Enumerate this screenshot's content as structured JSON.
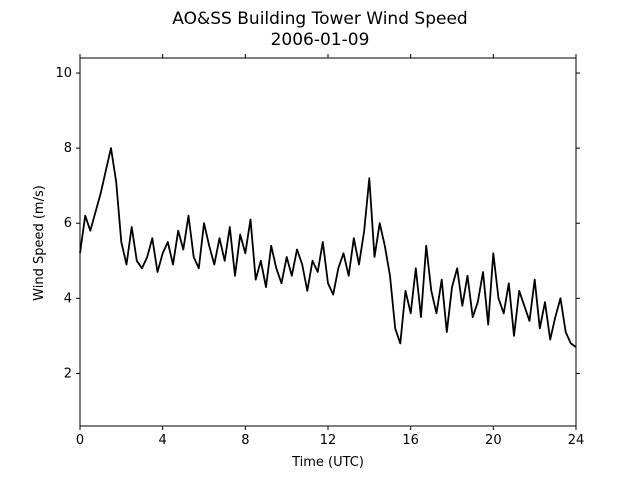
{
  "chart_data": {
    "type": "line",
    "title": "AO&SS Building Tower Wind Speed",
    "subtitle": "2006-01-09",
    "xlabel": "Time (UTC)",
    "ylabel": "Wind Speed (m/s)",
    "xlim": [
      0,
      24
    ],
    "ylim": [
      0.6,
      10.4
    ],
    "xticks": [
      0,
      4,
      8,
      12,
      16,
      20,
      24
    ],
    "yticks": [
      2,
      4,
      6,
      8,
      10
    ],
    "grid": false,
    "line_color": "#000000",
    "series": [
      {
        "x": [
          0.0,
          0.25,
          0.5,
          0.75,
          1.0,
          1.25,
          1.5,
          1.75,
          2.0,
          2.25,
          2.5,
          2.75,
          3.0,
          3.25,
          3.5,
          3.75,
          4.0,
          4.25,
          4.5,
          4.75,
          5.0,
          5.25,
          5.5,
          5.75,
          6.0,
          6.25,
          6.5,
          6.75,
          7.0,
          7.25,
          7.5,
          7.75,
          8.0,
          8.25,
          8.5,
          8.75,
          9.0,
          9.25,
          9.5,
          9.75,
          10.0,
          10.25,
          10.5,
          10.75,
          11.0,
          11.25,
          11.5,
          11.75,
          12.0,
          12.25,
          12.5,
          12.75,
          13.0,
          13.25,
          13.5,
          13.75,
          14.0,
          14.25,
          14.5,
          14.75,
          15.0,
          15.25,
          15.5,
          15.75,
          16.0,
          16.25,
          16.5,
          16.75,
          17.0,
          17.25,
          17.5,
          17.75,
          18.0,
          18.25,
          18.5,
          18.75,
          19.0,
          19.25,
          19.5,
          19.75,
          20.0,
          20.25,
          20.5,
          20.75,
          21.0,
          21.25,
          21.5,
          21.75,
          22.0,
          22.25,
          22.5,
          22.75,
          23.0,
          23.25,
          23.5,
          23.75,
          24.0
        ],
        "values": [
          5.2,
          6.2,
          5.8,
          6.3,
          6.8,
          7.4,
          8.0,
          7.1,
          5.5,
          4.9,
          5.9,
          5.0,
          4.8,
          5.1,
          5.6,
          4.7,
          5.2,
          5.5,
          4.9,
          5.8,
          5.3,
          6.2,
          5.1,
          4.8,
          6.0,
          5.4,
          4.9,
          5.6,
          5.0,
          5.9,
          4.6,
          5.7,
          5.2,
          6.1,
          4.5,
          5.0,
          4.3,
          5.4,
          4.8,
          4.4,
          5.1,
          4.6,
          5.3,
          4.9,
          4.2,
          5.0,
          4.7,
          5.5,
          4.4,
          4.1,
          4.8,
          5.2,
          4.6,
          5.6,
          4.9,
          5.8,
          7.2,
          5.1,
          6.0,
          5.4,
          4.6,
          3.2,
          2.8,
          4.2,
          3.6,
          4.8,
          3.5,
          5.4,
          4.2,
          3.6,
          4.5,
          3.1,
          4.3,
          4.8,
          3.8,
          4.6,
          3.5,
          3.9,
          4.7,
          3.3,
          5.2,
          4.0,
          3.6,
          4.4,
          3.0,
          4.2,
          3.8,
          3.4,
          4.5,
          3.2,
          3.9,
          2.9,
          3.5,
          4.0,
          3.1,
          2.8,
          2.7
        ]
      }
    ]
  }
}
